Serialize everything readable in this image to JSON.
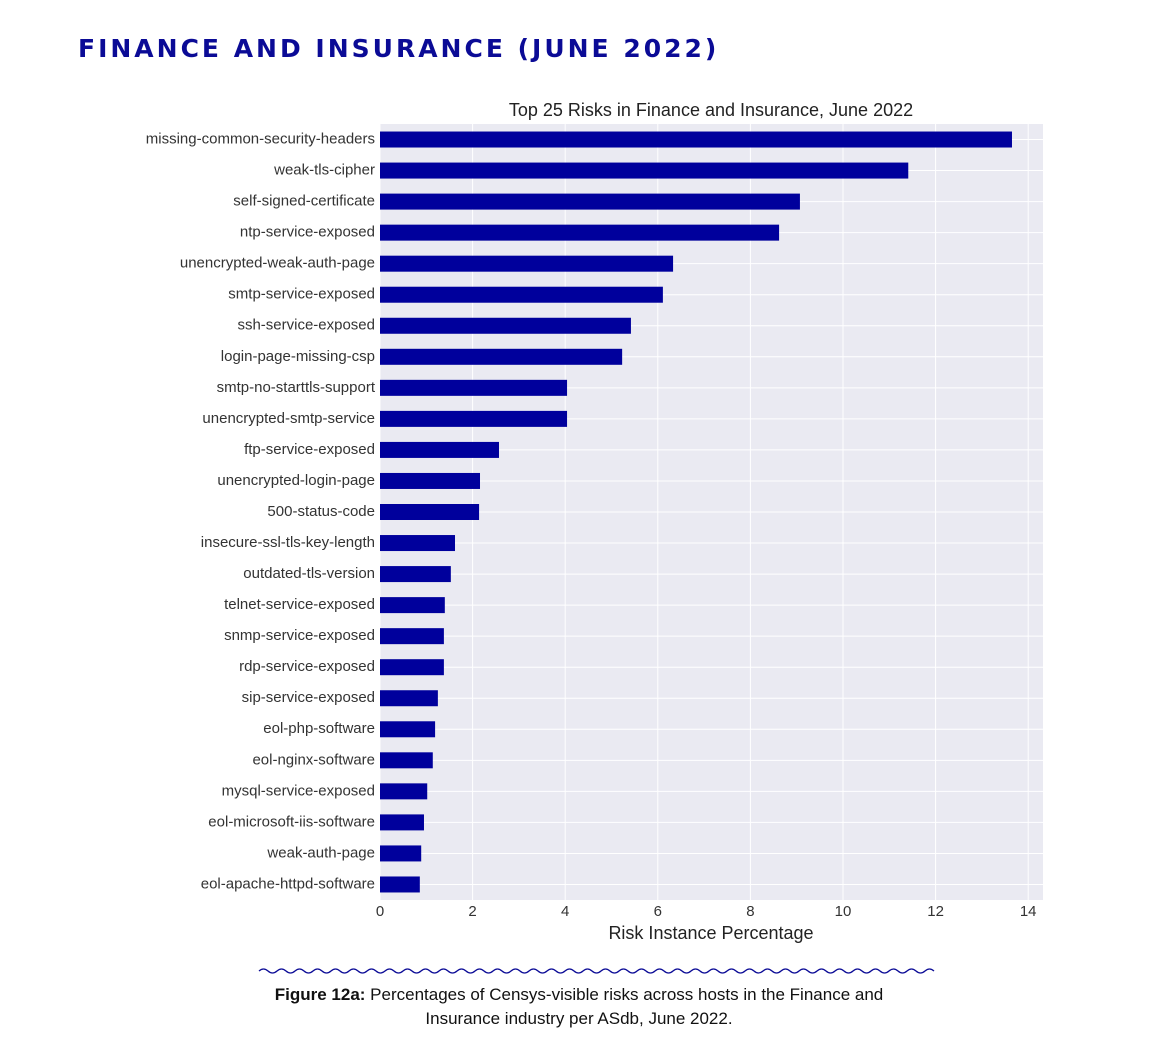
{
  "header": {
    "title": "FINANCE AND INSURANCE (JUNE 2022)"
  },
  "chart_data": {
    "type": "barh",
    "title": "Top 25 Risks in Finance and Insurance, June 2022",
    "x_label": "Risk Instance Percentage",
    "categories": [
      "missing-common-security-headers",
      "weak-tls-cipher",
      "self-signed-certificate",
      "ntp-service-exposed",
      "unencrypted-weak-auth-page",
      "smtp-service-exposed",
      "ssh-service-exposed",
      "login-page-missing-csp",
      "smtp-no-starttls-support",
      "unencrypted-smtp-service",
      "ftp-service-exposed",
      "unencrypted-login-page",
      "500-status-code",
      "insecure-ssl-tls-key-length",
      "outdated-tls-version",
      "telnet-service-exposed",
      "snmp-service-exposed",
      "rdp-service-exposed",
      "sip-service-exposed",
      "eol-php-software",
      "eol-nginx-software",
      "mysql-service-exposed",
      "eol-microsoft-iis-software",
      "weak-auth-page",
      "eol-apache-httpd-software"
    ],
    "values": [
      13.65,
      11.41,
      9.07,
      8.62,
      6.33,
      6.11,
      5.42,
      5.23,
      4.04,
      4.04,
      2.57,
      2.16,
      2.14,
      1.62,
      1.53,
      1.4,
      1.38,
      1.38,
      1.25,
      1.19,
      1.14,
      1.02,
      0.95,
      0.89,
      0.86
    ],
    "color": "#00009c",
    "xlim": [
      0,
      14.32
    ],
    "xticks": [
      0,
      2,
      4,
      6,
      8,
      10,
      12,
      14
    ],
    "grid": true
  },
  "caption": {
    "label": "Figure 12a:",
    "text": "Percentages of Censys-visible risks across hosts in the Finance and Insurance industry per ASdb, June 2022."
  }
}
